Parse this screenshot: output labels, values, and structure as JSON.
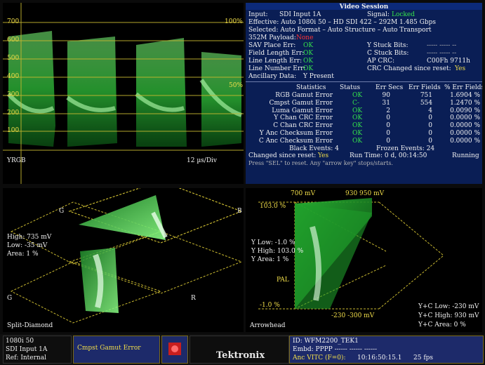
{
  "waveform": {
    "y_ticks": [
      "700",
      "600",
      "500",
      "400",
      "300",
      "200",
      "100"
    ],
    "marker_top": "100%",
    "marker_mid": "50%",
    "mode_label": "YRGB",
    "scale_label": "12 µs/Div"
  },
  "session": {
    "title": "Video Session",
    "input_label": "Input:",
    "input_value": "SDI Input 1A",
    "signal_label": "Signal:",
    "signal_value": "Locked",
    "effective": "Effective:  Auto 1080i 50 – HD SDI 422 – 292M 1.485 Gbps",
    "selected": "Selected:   Auto Format – Auto Structure – Auto Transport",
    "payload_label": "352M Payload:",
    "payload_value": "None",
    "left_rows": [
      {
        "label": "SAV Place Err:",
        "value": "OK"
      },
      {
        "label": "Field Length Err:",
        "value": "OK"
      },
      {
        "label": "Line Length Err:",
        "value": "OK"
      },
      {
        "label": "Line Number Err:",
        "value": "OK"
      },
      {
        "label": "Ancillary Data:",
        "value": "Y Present"
      }
    ],
    "right_rows": [
      {
        "label": "Y Stuck Bits:",
        "value": "----- ----- --"
      },
      {
        "label": "C Stuck Bits:",
        "value": "----- ----- --"
      },
      {
        "label": "AP CRC:",
        "value": "C00Fh     9711h"
      },
      {
        "label": "CRC Changed since reset:",
        "value": "Yes"
      }
    ],
    "stats_headers": [
      "Statistics",
      "Status",
      "Err Secs",
      "Err Fields",
      "% Err Fields"
    ],
    "stats_rows": [
      {
        "name": "RGB Gamut Error",
        "status": "OK",
        "secs": "90",
        "fields": "751",
        "pct": "1.6904 %"
      },
      {
        "name": "Cmpst Gamut Error",
        "status": "C-",
        "secs": "31",
        "fields": "554",
        "pct": "1.2470 %"
      },
      {
        "name": "Luma Gamut Error",
        "status": "OK",
        "secs": "2",
        "fields": "4",
        "pct": "0.0090 %"
      },
      {
        "name": "Y Chan CRC Error",
        "status": "OK",
        "secs": "0",
        "fields": "0",
        "pct": "0.0000 %"
      },
      {
        "name": "C Chan CRC Error",
        "status": "OK",
        "secs": "0",
        "fields": "0",
        "pct": "0.0000 %"
      },
      {
        "name": "Y Anc Checksum Error",
        "status": "OK",
        "secs": "0",
        "fields": "0",
        "pct": "0.0000 %"
      },
      {
        "name": "C Anc Checksum Error",
        "status": "OK",
        "secs": "0",
        "fields": "0",
        "pct": "0.0000 %"
      }
    ],
    "black_events": "Black Events:  4",
    "frozen_events": "Frozen Events:  24",
    "changed_label": "Changed since reset:",
    "changed_value": "Yes",
    "run_time": "Run Time: 0 d, 00:14:50",
    "running": "Running",
    "hint": "Press \"SEL\" to reset.   Any \"arrow key\" stops/starts."
  },
  "diamond": {
    "high": "High: 735 mV",
    "low": "Low:  -35 mV",
    "area": "Area:  1 %",
    "label_g1": "G",
    "label_b": "B",
    "label_g2": "G",
    "label_r": "R",
    "mode_label": "Split-Diamond"
  },
  "arrowhead": {
    "top_a": "700 mV",
    "top_b": "930 950 mV",
    "pct_top": "103.0 %",
    "y_low": "Y Low: -1.0 %",
    "y_high": "Y High: 103.0 %",
    "y_area": "Y Area:  1 %",
    "pal": "PAL",
    "pct_bottom": "-1.0 %",
    "bottom": "-230  -300 mV",
    "yc_low": "Y+C Low:  -230 mV",
    "yc_high": "Y+C High: 930 mV",
    "yc_area": "Y+C Area:   0 %",
    "mode_label": "Arrowhead"
  },
  "status": {
    "format": "1080i 50",
    "input": "SDI Input 1A",
    "ref": "Ref: Internal",
    "alarm": "Cmpst Gamut Error",
    "brand": "Tektronix",
    "id": "ID: WFM2200_TEK1",
    "embd": "Embd: PPPP  ------ ------ ------",
    "vitc_label": "Anc VITC (F=0):",
    "timecode": "10:16:50:15.1",
    "fps": "25 fps"
  }
}
